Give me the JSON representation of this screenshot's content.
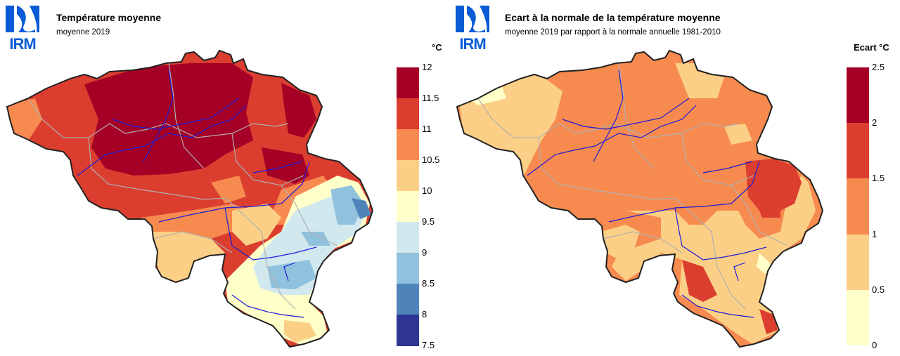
{
  "left_panel": {
    "logo": "IRM",
    "title": "Température moyenne",
    "subtitle": "moyenne 2019",
    "unit": "°C",
    "legend": {
      "ticks": [
        "12",
        "11.5",
        "11",
        "10.5",
        "10",
        "9.5",
        "9",
        "8.5",
        "8",
        "7.5"
      ],
      "colors": [
        "#a50026",
        "#db3e2f",
        "#f78a4f",
        "#fccf86",
        "#ffffc9",
        "#d1e8ef",
        "#90c2dd",
        "#4e84ba",
        "#2e3593"
      ]
    }
  },
  "right_panel": {
    "logo": "IRM",
    "title": "Ecart à la normale de la température moyenne",
    "subtitle": "moyenne 2019 par rapport à la normale annuelle 1981-2010",
    "unit": "Ecart  °C",
    "legend": {
      "ticks": [
        "2.5",
        "2",
        "1.5",
        "1",
        "0.5",
        "0"
      ],
      "colors": [
        "#a50026",
        "#db3e2f",
        "#f78a4f",
        "#fccf86",
        "#ffffc9"
      ]
    }
  }
}
